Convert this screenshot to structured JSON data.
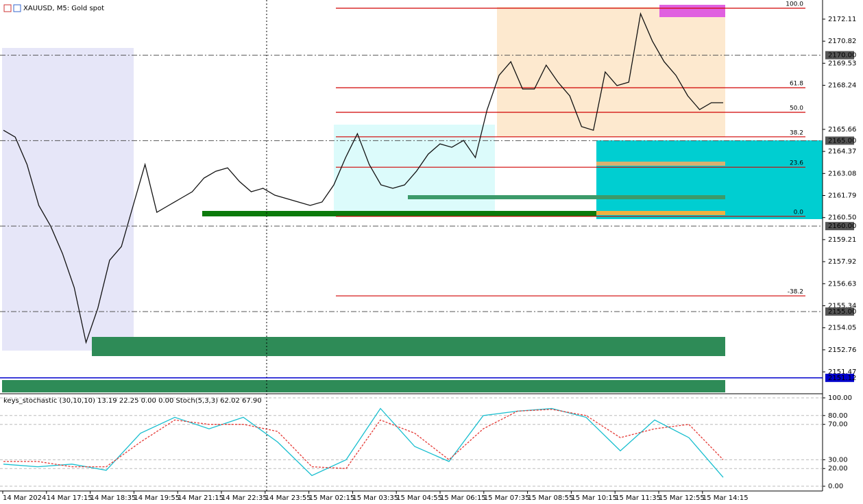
{
  "chart_data": [
    {
      "type": "line",
      "title": "XAUUSD, M5:  Gold spot",
      "color": "#111111",
      "values": [
        2165.61,
        2165.21,
        2163.61,
        2161.21,
        2160.0,
        2158.4,
        2156.4,
        2153.19,
        2155.19,
        2158.0,
        2158.8,
        2161.21,
        2163.61,
        2160.81,
        2161.21,
        2161.61,
        2162.01,
        2162.81,
        2163.21,
        2163.41,
        2162.61,
        2162.01,
        2162.21,
        2161.81,
        2161.61,
        2161.41,
        2161.21,
        2161.41,
        2162.41,
        2164.01,
        2165.41,
        2163.61,
        2162.41,
        2162.21,
        2162.41,
        2163.21,
        2164.21,
        2164.81,
        2164.61,
        2165.01,
        2164.01,
        2166.82,
        2168.82,
        2169.62,
        2168.02,
        2168.02,
        2169.42,
        2168.42,
        2167.62,
        2165.82,
        2165.61,
        2169.02,
        2168.22,
        2168.42,
        2172.43,
        2170.83,
        2169.62,
        2168.82,
        2167.62,
        2166.82,
        2167.22,
        2167.22
      ],
      "ylim": [
        2150.27,
        2173.23
      ],
      "yticks": [
        2172.11,
        2170.82,
        2169.53,
        2168.24,
        2165.66,
        2164.37,
        2163.08,
        2161.79,
        {
          "value": 2160.5,
          "label": "2160.50"
        },
        2159.21,
        2157.92,
        2156.63,
        2155.34,
        2154.05,
        2152.76,
        2151.47
      ],
      "xtick_labels": [
        "14 Mar 2024",
        "14 Mar 17:15",
        "14 Mar 18:35",
        "14 Mar 19:55",
        "14 Mar 21:15",
        "14 Mar 22:35",
        "14 Mar 23:55",
        "15 Mar 02:15",
        "15 Mar 03:35",
        "15 Mar 04:55",
        "15 Mar 06:15",
        "15 Mar 07:35",
        "15 Mar 08:55",
        "15 Mar 10:15",
        "15 Mar 11:35",
        "15 Mar 12:55",
        "15 Mar 14:15"
      ],
      "levels": [
        {
          "value": 2170,
          "label": "2170.00"
        },
        {
          "value": 2165,
          "label": "2165.00"
        },
        {
          "value": 2160,
          "label": "2160.00"
        },
        {
          "value": 2155,
          "label": "2155.00"
        }
      ],
      "levels_color": "#555555",
      "bid_line": {
        "value": 2151.12,
        "label": "2151.12",
        "color": "#0000cc"
      },
      "fib": {
        "low": 2160.57,
        "high": 2172.75,
        "color": "#d00000",
        "levels": [
          100,
          61.8,
          50,
          38.2,
          23.6,
          0,
          -38.2
        ],
        "value_labels": [
          "100.0",
          "61.8",
          "50.0",
          "38.2",
          "23.6",
          "0.0",
          "-38.2"
        ]
      }
    },
    {
      "type": "line",
      "title": "keys_stochastic (30,10,10) 13.19 22.25 0.00 0.00 Stoch(5,3,3) 62.02 67.90",
      "ylim": [
        -5.4,
        103.1
      ],
      "yticks": [
        {
          "value": 100,
          "label": "100.00"
        },
        {
          "value": 80,
          "label": "80.00"
        },
        {
          "value": 70,
          "label": "70.00"
        },
        {
          "value": 30,
          "label": "30.00"
        },
        {
          "value": 20,
          "label": "20.00"
        },
        {
          "value": 0,
          "label": "0.00"
        }
      ],
      "series": [
        {
          "color": "#17becf",
          "values": [
            25,
            22,
            25,
            18,
            60,
            78,
            65,
            78,
            50,
            12,
            30,
            88,
            45,
            28,
            80,
            85,
            88,
            78,
            40,
            75,
            55,
            10
          ]
        },
        {
          "color": "#e53935",
          "values": [
            28,
            28,
            22,
            22,
            50,
            75,
            70,
            70,
            62,
            22,
            20,
            75,
            60,
            30,
            65,
            85,
            87,
            80,
            55,
            65,
            70,
            30
          ]
        }
      ]
    }
  ]
}
